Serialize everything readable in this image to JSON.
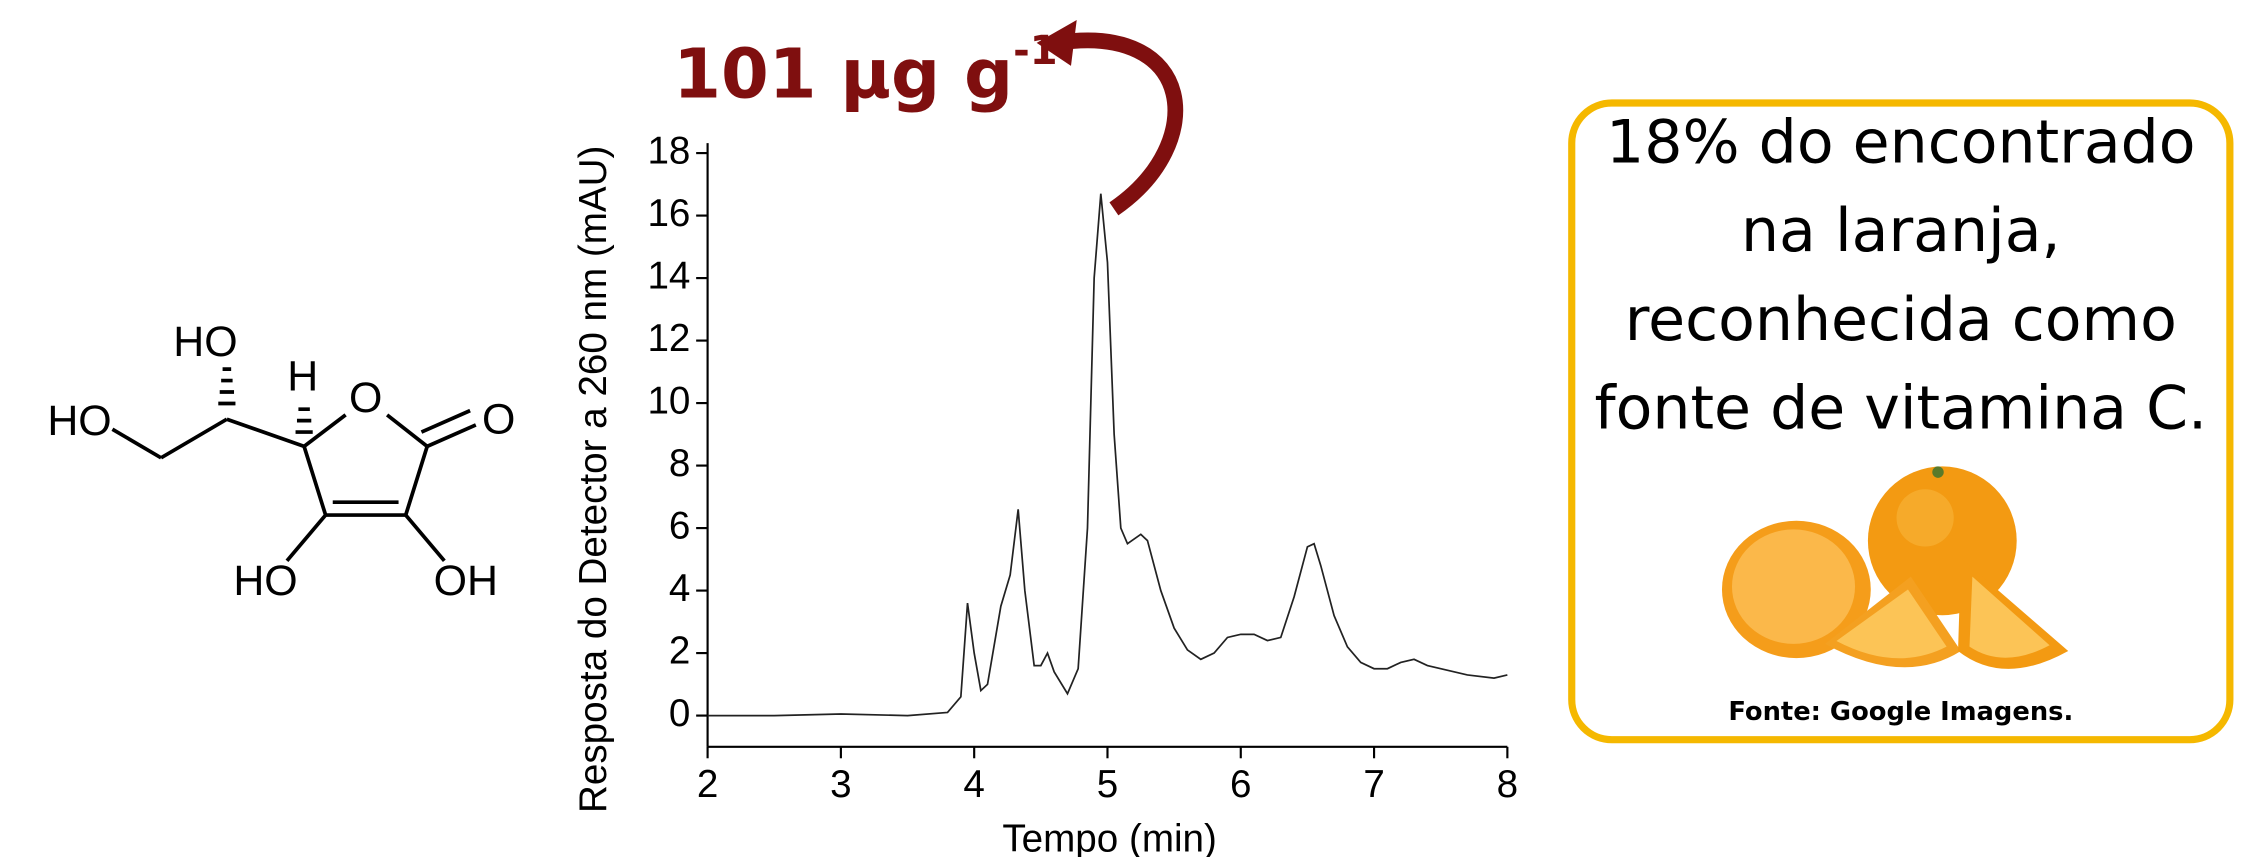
{
  "molecule": {
    "labels": [
      "HO",
      "HO",
      "H",
      "O",
      "O",
      "HO",
      "OH"
    ]
  },
  "chart_data": {
    "type": "line",
    "xlabel": "Tempo (min)",
    "ylabel": "Resposta do Detector a 260 nm (mAU)",
    "annotation": {
      "text": "101 μg g",
      "superscript": "-1"
    },
    "xlim": [
      2,
      8
    ],
    "xticks": [
      2,
      3,
      4,
      5,
      6,
      7,
      8
    ],
    "ylim": [
      -1,
      18
    ],
    "yticks": [
      0,
      2,
      4,
      6,
      8,
      10,
      12,
      14,
      16,
      18
    ],
    "series": [
      {
        "color": "#222222",
        "x": [
          2.0,
          2.5,
          3.0,
          3.5,
          3.8,
          3.9,
          3.95,
          4.0,
          4.05,
          4.1,
          4.2,
          4.27,
          4.33,
          4.38,
          4.45,
          4.5,
          4.55,
          4.6,
          4.7,
          4.78,
          4.85,
          4.9,
          4.95,
          5.0,
          5.05,
          5.1,
          5.15,
          5.25,
          5.3,
          5.4,
          5.5,
          5.6,
          5.7,
          5.8,
          5.9,
          6.0,
          6.1,
          6.2,
          6.3,
          6.4,
          6.5,
          6.55,
          6.6,
          6.7,
          6.8,
          6.9,
          7.0,
          7.1,
          7.2,
          7.3,
          7.4,
          7.5,
          7.7,
          7.9,
          8.0
        ],
        "values": [
          0.0,
          0.0,
          0.05,
          0.0,
          0.1,
          0.6,
          3.6,
          2.0,
          0.8,
          1.0,
          3.5,
          4.5,
          6.6,
          4.0,
          1.6,
          1.6,
          2.0,
          1.4,
          0.7,
          1.5,
          6.0,
          14.0,
          16.7,
          14.5,
          9.0,
          6.0,
          5.5,
          5.8,
          5.6,
          4.0,
          2.8,
          2.1,
          1.8,
          2.0,
          2.5,
          2.6,
          2.6,
          2.4,
          2.5,
          3.8,
          5.4,
          5.5,
          4.8,
          3.2,
          2.2,
          1.7,
          1.5,
          1.5,
          1.7,
          1.8,
          1.6,
          1.5,
          1.3,
          1.2,
          1.3
        ]
      }
    ]
  },
  "info_box": {
    "lines": [
      "18% do encontrado",
      "na laranja,",
      "reconhecida como",
      "fonte de vitamina C."
    ],
    "source": "Fonte: Google Imagens."
  }
}
